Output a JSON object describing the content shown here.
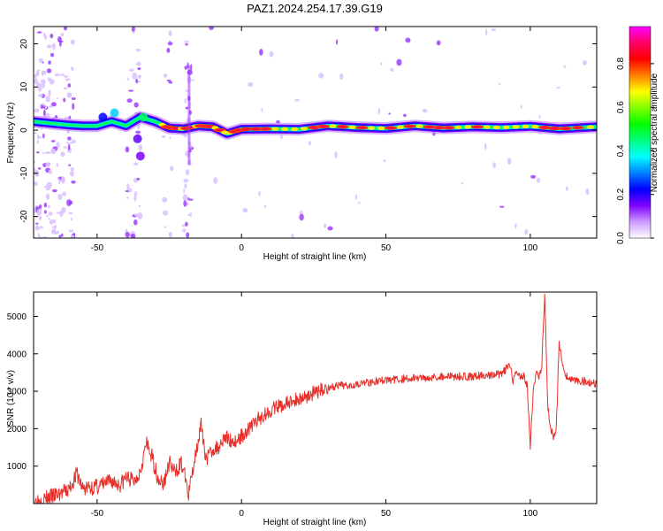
{
  "title": "PAZ1.2024.254.17.39.G19",
  "chart_data": [
    {
      "type": "heatmap",
      "xlabel": "Height of straight line (km)",
      "ylabel": "Frequency (Hz)",
      "xlim": [
        -72,
        123
      ],
      "ylim": [
        -25,
        24
      ],
      "xticks": [
        -50,
        0,
        50,
        100
      ],
      "yticks": [
        -20,
        -10,
        0,
        10,
        20
      ],
      "colorbar": {
        "label": "Normalized spectral amplitude",
        "range": [
          0,
          0.97
        ],
        "ticks": [
          "0.0",
          "0.2",
          "0.4",
          "0.6",
          "0.8"
        ],
        "colormap": [
          "#ffffff",
          "#cc99ff",
          "#8000ff",
          "#0000ff",
          "#0080ff",
          "#00ffff",
          "#00ff80",
          "#00ff00",
          "#80ff00",
          "#ffff00",
          "#ff8000",
          "#ff0000",
          "#ff0066",
          "#ff00ff"
        ]
      },
      "ridge": {
        "x": [
          -72,
          -65,
          -60,
          -55,
          -50,
          -45,
          -40,
          -35,
          -30,
          -25,
          -20,
          -15,
          -10,
          -5,
          0,
          10,
          20,
          30,
          40,
          50,
          60,
          70,
          80,
          90,
          100,
          110,
          123
        ],
        "y": [
          2.0,
          1.5,
          1.2,
          1.0,
          1.0,
          2.0,
          1.0,
          3.0,
          2.0,
          0.5,
          0.3,
          1.0,
          0.8,
          -0.8,
          0.2,
          0.3,
          0.2,
          1.0,
          0.6,
          0.4,
          1.0,
          0.5,
          0.8,
          0.6,
          0.9,
          0.3,
          0.8
        ]
      }
    },
    {
      "type": "line",
      "xlabel": "Height of straight line (km)",
      "ylabel": "SNR (10 * v/v)",
      "xlim": [
        -72,
        123
      ],
      "ylim": [
        0,
        5650
      ],
      "xticks": [
        -50,
        0,
        50,
        100
      ],
      "yticks": [
        1000,
        2000,
        3000,
        4000,
        5000
      ],
      "color": "#e8302a",
      "series": [
        {
          "x": [
            -72,
            -65,
            -60,
            -57,
            -55,
            -50,
            -45,
            -42,
            -40,
            -37,
            -35,
            -33,
            -31,
            -29,
            -27,
            -25,
            -23,
            -21,
            -19,
            -18.5,
            -18,
            -16,
            -14,
            -13,
            -12,
            -10,
            -8,
            -6,
            -4,
            -2,
            0,
            5,
            10,
            15,
            20,
            25,
            30,
            40,
            50,
            60,
            70,
            80,
            90,
            93,
            94,
            95,
            96,
            97,
            98,
            99,
            100,
            101,
            102,
            103,
            104,
            105,
            106,
            107,
            108,
            109,
            110,
            112,
            115,
            120,
            123
          ],
          "y": [
            50,
            200,
            350,
            800,
            400,
            450,
            600,
            500,
            700,
            600,
            900,
            1600,
            1250,
            700,
            500,
            1100,
            800,
            1100,
            600,
            100,
            400,
            1300,
            2100,
            1500,
            1200,
            1450,
            1500,
            1800,
            1700,
            1650,
            1800,
            2200,
            2500,
            2650,
            2800,
            2950,
            3100,
            3200,
            3300,
            3350,
            3400,
            3400,
            3450,
            3700,
            3200,
            3500,
            3400,
            3450,
            3400,
            3100,
            1500,
            3000,
            3500,
            3350,
            3700,
            5600,
            2700,
            2000,
            1800,
            2000,
            4300,
            3400,
            3300,
            3250,
            3200
          ]
        }
      ]
    }
  ]
}
